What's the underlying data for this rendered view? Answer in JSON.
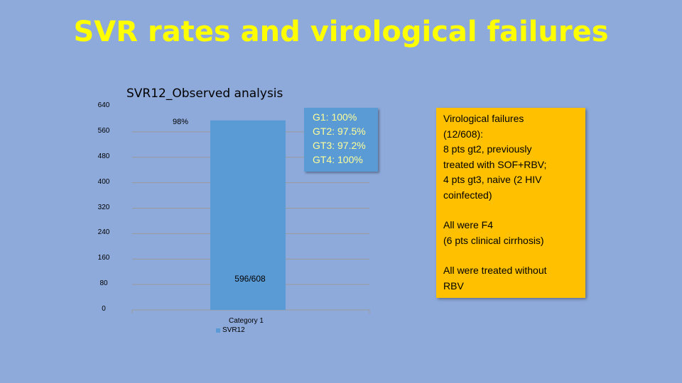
{
  "title": "SVR rates and virological failures",
  "chart_data": {
    "type": "bar",
    "title": "SVR12_Observed analysis",
    "categories": [
      "Category 1"
    ],
    "series": [
      {
        "name": "SVR12",
        "values": [
          596
        ]
      }
    ],
    "ylim": [
      0,
      640
    ],
    "yticks": [
      "640",
      "560",
      "480",
      "400",
      "320",
      "240",
      "160",
      "80",
      "0"
    ],
    "data_labels": {
      "top": "98%",
      "inside": "596/608"
    },
    "grid": true,
    "legend": "bottom",
    "color": "#5b9bd5"
  },
  "genotype_box": {
    "lines": [
      "G1: 100%",
      "GT2: 97.5%",
      "GT3: 97.2%",
      "GT4: 100%"
    ]
  },
  "info_box": {
    "paragraphs": [
      [
        "Virological failures",
        "(12/608):",
        "8 pts gt2, previously",
        "treated  with SOF+RBV;",
        "4 pts gt3, naive (2 HIV",
        "coinfected)"
      ],
      [
        "All were F4",
        "(6 pts clinical cirrhosis)"
      ],
      [
        "All were treated without",
        "RBV"
      ]
    ]
  },
  "colors": {
    "background": "#8eaadb",
    "title": "#ffff00",
    "bar": "#5b9bd5",
    "callout": "#ffc000",
    "genotype_text": "#ffff99"
  }
}
